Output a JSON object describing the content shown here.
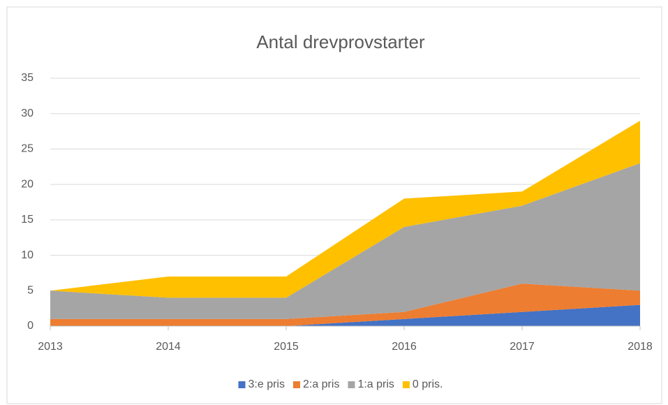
{
  "chart_data": {
    "type": "stacked_area",
    "title": "Antal drevprovstarter",
    "x": [
      2013,
      2014,
      2015,
      2016,
      2017,
      2018
    ],
    "xlim": [
      2013,
      2018
    ],
    "xticks": [
      2013,
      2014,
      2015,
      2016,
      2017,
      2018
    ],
    "ylim": [
      0,
      35
    ],
    "yticks": [
      0,
      5,
      10,
      15,
      20,
      25,
      30,
      35
    ],
    "grid": true,
    "legend": "bottom",
    "series": [
      {
        "name": "3:e pris",
        "color": "#4472c4",
        "values": [
          0,
          0,
          0,
          1,
          2,
          3
        ]
      },
      {
        "name": "2:a pris",
        "color": "#ed7d31",
        "values": [
          1,
          1,
          1,
          1,
          4,
          2
        ]
      },
      {
        "name": "1:a pris",
        "color": "#a5a5a5",
        "values": [
          4,
          3,
          3,
          12,
          11,
          18
        ]
      },
      {
        "name": "0 pris.",
        "color": "#ffc000",
        "values": [
          0,
          3,
          3,
          4,
          2,
          6
        ]
      }
    ]
  }
}
